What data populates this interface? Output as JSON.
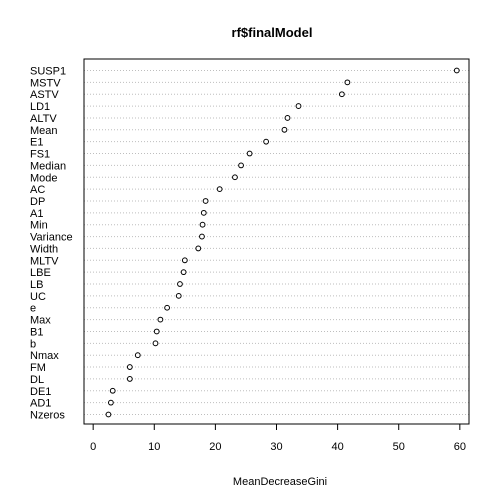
{
  "chart_data": {
    "type": "scatter",
    "title": "rf$finalModel",
    "xlabel": "MeanDecreaseGini",
    "ylabel": "",
    "xlim": [
      -1.5,
      61.5
    ],
    "xticks": [
      0,
      10,
      20,
      30,
      40,
      50,
      60
    ],
    "grid": "dotted horizontal guide lines",
    "categories": [
      "SUSP1",
      "MSTV",
      "ASTV",
      "LD1",
      "ALTV",
      "Mean",
      "E1",
      "FS1",
      "Median",
      "Mode",
      "AC",
      "DP",
      "A1",
      "Min",
      "Variance",
      "Width",
      "MLTV",
      "LBE",
      "LB",
      "UC",
      "e",
      "Max",
      "B1",
      "b",
      "Nmax",
      "FM",
      "DL",
      "DE1",
      "AD1",
      "Nzeros"
    ],
    "values": [
      59.5,
      41.6,
      40.7,
      33.6,
      31.8,
      31.3,
      28.3,
      25.6,
      24.2,
      23.2,
      20.7,
      18.4,
      18.1,
      17.9,
      17.8,
      17.2,
      15.0,
      14.8,
      14.2,
      14.0,
      12.1,
      11.0,
      10.4,
      10.2,
      7.3,
      6.0,
      6.0,
      3.2,
      2.9,
      2.5
    ]
  }
}
